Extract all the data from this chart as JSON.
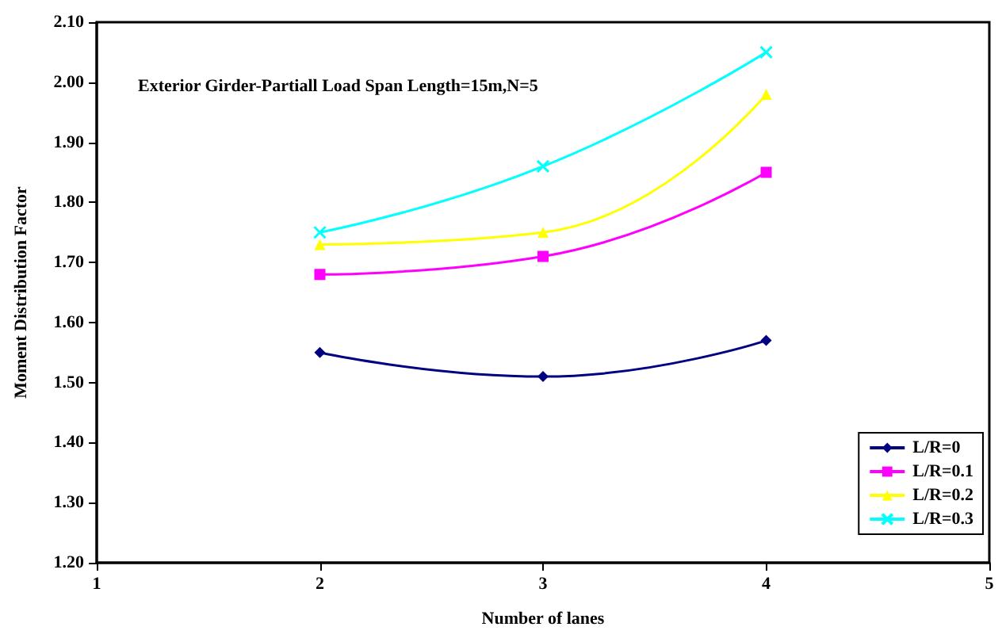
{
  "chart_data": {
    "type": "line",
    "title": "Exterior Girder-Partiall Load Span Length=15m,N=5",
    "xlabel": "Number of lanes",
    "ylabel": "Moment Distribution Factor",
    "x": [
      2,
      3,
      4
    ],
    "xlim": [
      1,
      5
    ],
    "xticks": [
      1,
      2,
      3,
      4,
      5
    ],
    "ylim": [
      1.2,
      2.1
    ],
    "yticks": [
      {
        "value": 1.2,
        "label": "1.20"
      },
      {
        "value": 1.3,
        "label": "1.30"
      },
      {
        "value": 1.4,
        "label": "1.40"
      },
      {
        "value": 1.5,
        "label": "1.50"
      },
      {
        "value": 1.6,
        "label": "1.60"
      },
      {
        "value": 1.7,
        "label": "1.70"
      },
      {
        "value": 1.8,
        "label": "1.80"
      },
      {
        "value": 1.9,
        "label": "1.90"
      },
      {
        "value": 2.0,
        "label": "2.00"
      },
      {
        "value": 2.1,
        "label": "2.10"
      }
    ],
    "grid": false,
    "legend": "bottom right",
    "line_style": "solid",
    "series": [
      {
        "name": "L/R=0",
        "color": "#000080",
        "marker": "diamond",
        "values": [
          1.55,
          1.51,
          1.57
        ]
      },
      {
        "name": "L/R=0.1",
        "color": "#ff00ff",
        "marker": "square",
        "values": [
          1.68,
          1.71,
          1.85
        ]
      },
      {
        "name": "L/R=0.2",
        "color": "#ffff00",
        "marker": "triangle",
        "values": [
          1.73,
          1.75,
          1.98
        ]
      },
      {
        "name": "L/R=0.3",
        "color": "#00ffff",
        "marker": "cross",
        "values": [
          1.75,
          1.86,
          2.05
        ]
      }
    ]
  }
}
